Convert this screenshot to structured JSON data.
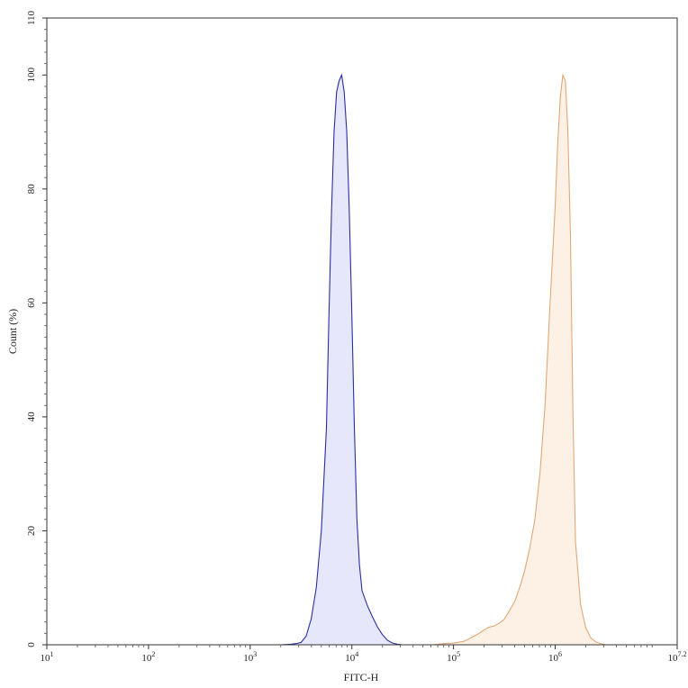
{
  "chart_data": {
    "type": "area",
    "xlabel": "FITC-H",
    "ylabel": "Count (%)",
    "x_scale": "log",
    "xlim": [
      10,
      15848932
    ],
    "ylim": [
      0,
      110
    ],
    "x_ticks": [
      {
        "value": 10,
        "base": "10",
        "exp": "1"
      },
      {
        "value": 100,
        "base": "10",
        "exp": "2"
      },
      {
        "value": 1000,
        "base": "10",
        "exp": "3"
      },
      {
        "value": 10000,
        "base": "10",
        "exp": "4"
      },
      {
        "value": 100000,
        "base": "10",
        "exp": "5"
      },
      {
        "value": 1000000,
        "base": "10",
        "exp": "6"
      },
      {
        "value": 15848932,
        "base": "10",
        "exp": "7.2"
      }
    ],
    "y_ticks": [
      {
        "value": 0,
        "label": "0"
      },
      {
        "value": 20,
        "label": "20"
      },
      {
        "value": 40,
        "label": "40"
      },
      {
        "value": 60,
        "label": "60"
      },
      {
        "value": 80,
        "label": "80"
      },
      {
        "value": 100,
        "label": "100"
      },
      {
        "value": 110,
        "label": "110"
      }
    ],
    "series": [
      {
        "stroke": "#2b2f9c",
        "fill": "#e6e7fb",
        "x": [
          1995,
          2512,
          2818,
          3162,
          3548,
          3981,
          4467,
          5012,
          5623,
          5957,
          6310,
          6683,
          7079,
          7499,
          7943,
          8414,
          8913,
          9441,
          10000,
          10593,
          11220,
          11885,
          12589,
          14125,
          15849,
          17783,
          19953,
          22387,
          25119,
          28184,
          31623
        ],
        "y": [
          0,
          0.1,
          0.2,
          0.4,
          1.5,
          4.5,
          10,
          20,
          38,
          58,
          76,
          90,
          97,
          99,
          100,
          97,
          90,
          76,
          58,
          38,
          22,
          14,
          9.5,
          7,
          5,
          3.2,
          1.8,
          0.8,
          0.3,
          0.1,
          0
        ]
      },
      {
        "stroke": "#e0a878",
        "fill": "#fdf1e6",
        "x": [
          63096,
          79433,
          100000,
          125893,
          141254,
          158489,
          177828,
          199526,
          223872,
          251189,
          281838,
          316228,
          354813,
          398107,
          446684,
          501187,
          562341,
          630957,
          707946,
          794328,
          891251,
          1000000,
          1059254,
          1122018,
          1188502,
          1258925,
          1333521,
          1412538,
          1496236,
          1584893,
          1778279,
          1995262,
          2238721,
          2511886,
          2818383,
          3162278
        ],
        "y": [
          0,
          0.2,
          0.3,
          0.6,
          1,
          1.5,
          2,
          2.6,
          3.1,
          3.3,
          3.8,
          4.5,
          6,
          7.5,
          10,
          13,
          17,
          22,
          30,
          42,
          60,
          77,
          88,
          96,
          100,
          99,
          90,
          72,
          40,
          18,
          7,
          3,
          1.2,
          0.5,
          0.2,
          0
        ]
      }
    ]
  }
}
